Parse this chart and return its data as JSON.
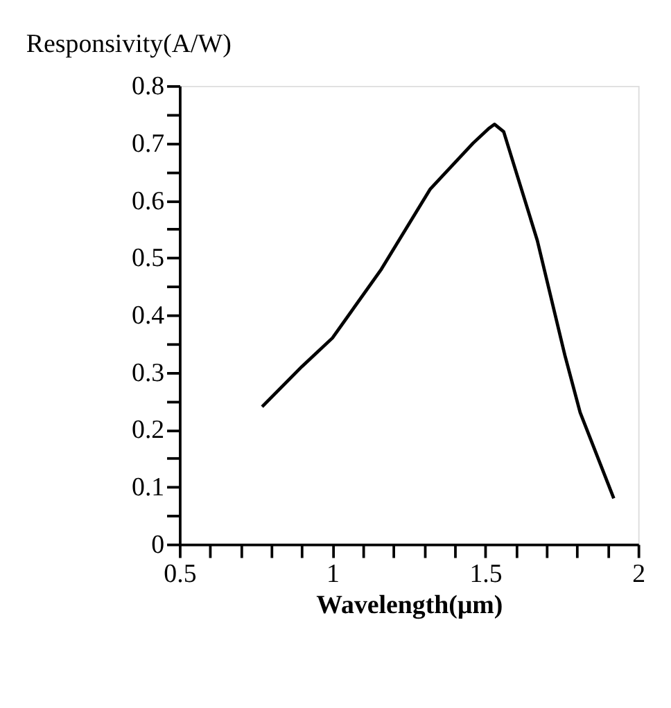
{
  "chart_data": {
    "type": "line",
    "ylabel": "Responsivity(A/W)",
    "xlabel": "Wavelength(μm)",
    "x": [
      0.77,
      0.9,
      1.0,
      1.16,
      1.32,
      1.46,
      1.51,
      1.53,
      1.56,
      1.67,
      1.76,
      1.81,
      1.92
    ],
    "series": [
      {
        "color": "#000000",
        "values": [
          0.24,
          0.31,
          0.36,
          0.48,
          0.62,
          0.7,
          0.725,
          0.733,
          0.72,
          0.53,
          0.33,
          0.23,
          0.08
        ]
      }
    ],
    "xlim": [
      0.5,
      2
    ],
    "ylim": [
      0,
      0.8
    ],
    "xticks": [
      0.5,
      {
        "value": 0.6,
        "label": null
      },
      {
        "value": 0.7,
        "label": null
      },
      {
        "value": 0.8,
        "label": null
      },
      {
        "value": 0.9,
        "label": null
      },
      1,
      {
        "value": 1.1,
        "label": null
      },
      {
        "value": 1.2,
        "label": null
      },
      {
        "value": 1.3,
        "label": null
      },
      {
        "value": 1.4,
        "label": null
      },
      1.5,
      {
        "value": 1.6,
        "label": null
      },
      {
        "value": 1.7,
        "label": null
      },
      {
        "value": 1.8,
        "label": null
      },
      {
        "value": 1.9,
        "label": null
      },
      2
    ],
    "yticks": [
      0,
      {
        "value": 0.05,
        "label": null
      },
      0.1,
      {
        "value": 0.15,
        "label": null
      },
      0.2,
      {
        "value": 0.25,
        "label": null
      },
      0.3,
      {
        "value": 0.35,
        "label": null
      },
      0.4,
      {
        "value": 0.45,
        "label": null
      },
      0.5,
      {
        "value": 0.55,
        "label": null
      },
      0.6,
      {
        "value": 0.65,
        "label": null
      },
      0.7,
      {
        "value": 0.75,
        "label": null
      },
      0.8
    ],
    "grid": false,
    "marker": "none",
    "line_style": "solid"
  }
}
